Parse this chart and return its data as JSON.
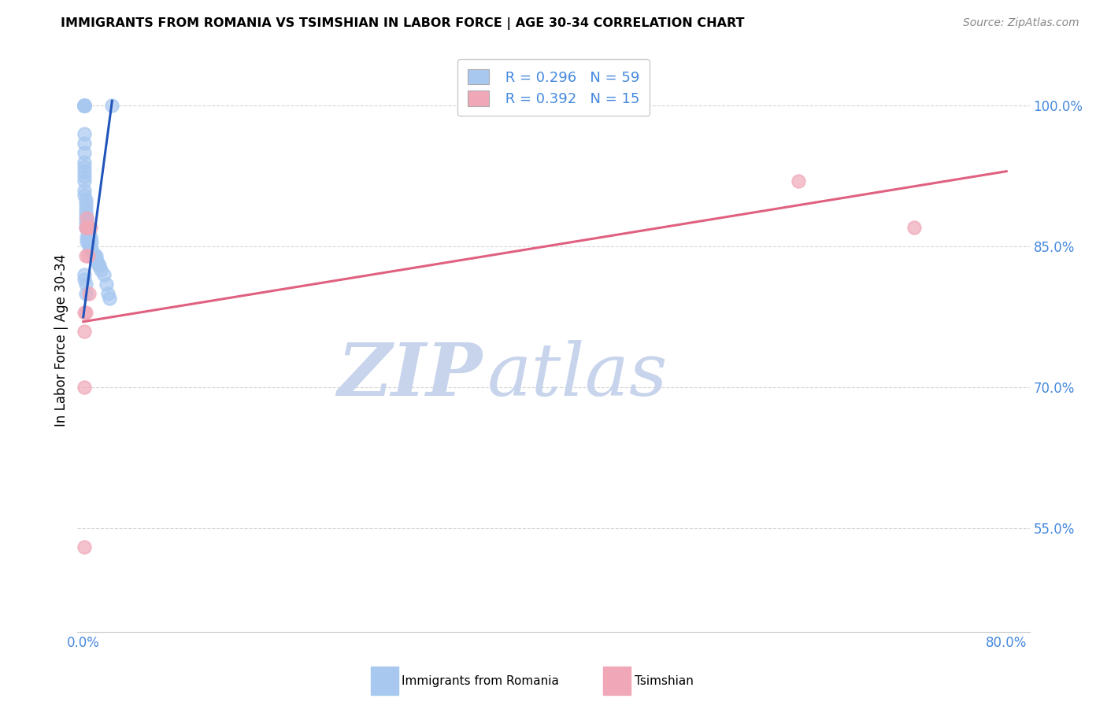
{
  "title": "IMMIGRANTS FROM ROMANIA VS TSIMSHIAN IN LABOR FORCE | AGE 30-34 CORRELATION CHART",
  "source": "Source: ZipAtlas.com",
  "ylabel": "In Labor Force | Age 30-34",
  "xlim": [
    -0.005,
    0.82
  ],
  "ylim": [
    0.44,
    1.06
  ],
  "yticks": [
    0.55,
    0.7,
    0.85,
    1.0
  ],
  "yticklabels": [
    "55.0%",
    "70.0%",
    "85.0%",
    "100.0%"
  ],
  "xtick_positions": [
    0.0,
    0.1,
    0.2,
    0.3,
    0.4,
    0.5,
    0.6,
    0.7,
    0.8
  ],
  "xticklabels": [
    "0.0%",
    "",
    "",
    "",
    "",
    "",
    "",
    "",
    "80.0%"
  ],
  "legend_r1": "R = 0.296",
  "legend_n1": "N = 59",
  "legend_r2": "R = 0.392",
  "legend_n2": "N = 15",
  "romania_color": "#a8c8f0",
  "tsimshian_color": "#f0a8b8",
  "romania_line_color": "#2255bb",
  "tsimshian_line_color": "#e06080",
  "blue_text_color": "#4488dd",
  "watermark_zip_color": "#c8d4ec",
  "watermark_atlas_color": "#c8d4ec",
  "grid_color": "#cccccc",
  "background_color": "#ffffff",
  "romania_x": [
    0.001,
    0.001,
    0.001,
    0.001,
    0.001,
    0.001,
    0.001,
    0.001,
    0.001,
    0.001,
    0.001,
    0.001,
    0.001,
    0.001,
    0.001,
    0.001,
    0.001,
    0.001,
    0.001,
    0.001,
    0.002,
    0.002,
    0.002,
    0.002,
    0.002,
    0.002,
    0.002,
    0.003,
    0.003,
    0.003,
    0.003,
    0.004,
    0.004,
    0.004,
    0.005,
    0.005,
    0.006,
    0.006,
    0.007,
    0.007,
    0.008,
    0.009,
    0.01,
    0.011,
    0.012,
    0.013,
    0.014,
    0.015,
    0.018,
    0.02,
    0.021,
    0.023,
    0.001,
    0.001,
    0.002,
    0.002,
    0.003,
    0.004,
    0.025
  ],
  "romania_y": [
    1.0,
    1.0,
    1.0,
    1.0,
    1.0,
    1.0,
    1.0,
    1.0,
    1.0,
    1.0,
    0.97,
    0.96,
    0.95,
    0.94,
    0.935,
    0.93,
    0.925,
    0.92,
    0.91,
    0.905,
    0.9,
    0.895,
    0.89,
    0.885,
    0.88,
    0.875,
    0.87,
    0.88,
    0.87,
    0.86,
    0.855,
    0.87,
    0.86,
    0.855,
    0.865,
    0.85,
    0.86,
    0.85,
    0.855,
    0.845,
    0.845,
    0.84,
    0.84,
    0.84,
    0.835,
    0.83,
    0.83,
    0.825,
    0.82,
    0.81,
    0.8,
    0.795,
    0.82,
    0.815,
    0.81,
    0.8,
    0.88,
    0.87,
    1.0
  ],
  "tsimshian_x": [
    0.001,
    0.001,
    0.001,
    0.002,
    0.002,
    0.002,
    0.003,
    0.003,
    0.004,
    0.004,
    0.005,
    0.006,
    0.001,
    0.62,
    0.72
  ],
  "tsimshian_y": [
    0.78,
    0.76,
    0.53,
    0.87,
    0.84,
    0.78,
    0.87,
    0.88,
    0.87,
    0.84,
    0.8,
    0.87,
    0.7,
    0.92,
    0.87
  ],
  "romania_trend_x": [
    0.0,
    0.025
  ],
  "romania_trend_y": [
    0.775,
    1.005
  ],
  "tsimshian_trend_x": [
    0.0,
    0.8
  ],
  "tsimshian_trend_y": [
    0.77,
    0.93
  ]
}
